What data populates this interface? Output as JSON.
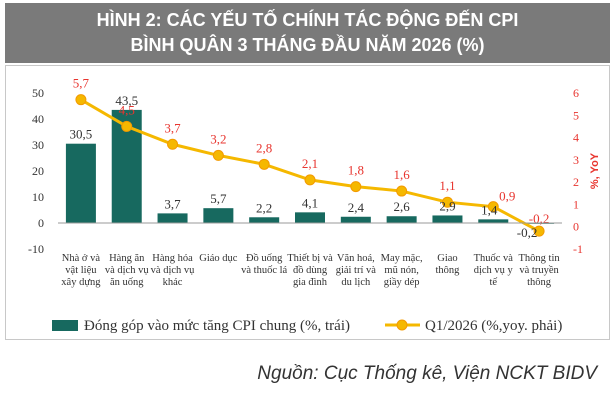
{
  "figure": {
    "title_line1": "HÌNH 2: CÁC YẾU TỐ CHÍNH TÁC ĐỘNG ĐẾN CPI",
    "title_line2": "BÌNH QUÂN 3 THÁNG ĐẦU NĂM 2026 (%)",
    "source": "Nguồn: Cục Thống kê, Viện NCKT BIDV"
  },
  "colors": {
    "bar": "#17695f",
    "line": "#f5b800",
    "marker_edge": "#f39a00",
    "right_axis": "#e8352f",
    "title_band": "#7a7a7a"
  },
  "chart_data": {
    "type": "bar+line",
    "categories": [
      [
        "Nhà ở và",
        "vật liệu",
        "xây dựng"
      ],
      [
        "Hàng ăn",
        "và dịch vụ",
        "ăn uống"
      ],
      [
        "Hàng hóa",
        "và dịch vụ",
        "khác"
      ],
      [
        "Giáo dục"
      ],
      [
        "Đồ uống",
        "và thuốc lá"
      ],
      [
        "Thiết bị và",
        "đồ dùng",
        "gia đình"
      ],
      [
        "Văn hoá,",
        "giải trí và",
        "du lịch"
      ],
      [
        "May mặc,",
        "mũ nón,",
        "giầy dép"
      ],
      [
        "Giao",
        "thông"
      ],
      [
        "Thuốc và",
        "dịch vụ y",
        "tế"
      ],
      [
        "Thông tin",
        "và truyền",
        "thông"
      ]
    ],
    "series": [
      {
        "name": "Đóng góp vào mức tăng CPI chung (%, trái)",
        "kind": "bar",
        "axis": "left",
        "values": [
          30.5,
          43.5,
          3.7,
          5.7,
          2.2,
          4.1,
          2.4,
          2.6,
          2.9,
          1.4,
          -0.2
        ],
        "labels": [
          "30,5",
          "43,5",
          "3,7",
          "5,7",
          "2,2",
          "4,1",
          "2,4",
          "2,6",
          "2,9",
          "1,4",
          "-0,2"
        ]
      },
      {
        "name": "Q1/2026 (%,yoy. phải)",
        "kind": "line",
        "axis": "right",
        "values": [
          5.7,
          4.5,
          3.7,
          3.2,
          2.8,
          2.1,
          1.8,
          1.6,
          1.1,
          0.9,
          -0.2
        ],
        "labels": [
          "5,7",
          "4,5",
          "3,7",
          "3,2",
          "2,8",
          "2,1",
          "1,8",
          "1,6",
          "1,1",
          "0,9",
          "-0,2"
        ]
      }
    ],
    "y_left": {
      "min": -10,
      "max": 50,
      "ticks": [
        "-10",
        "0",
        "10",
        "20",
        "30",
        "40",
        "50"
      ]
    },
    "y_right": {
      "min": -1,
      "max": 6,
      "label": "%, YoY",
      "ticks": [
        "-1",
        "0",
        "1",
        "2",
        "3",
        "4",
        "5",
        "6"
      ]
    },
    "legend_position": "bottom"
  }
}
